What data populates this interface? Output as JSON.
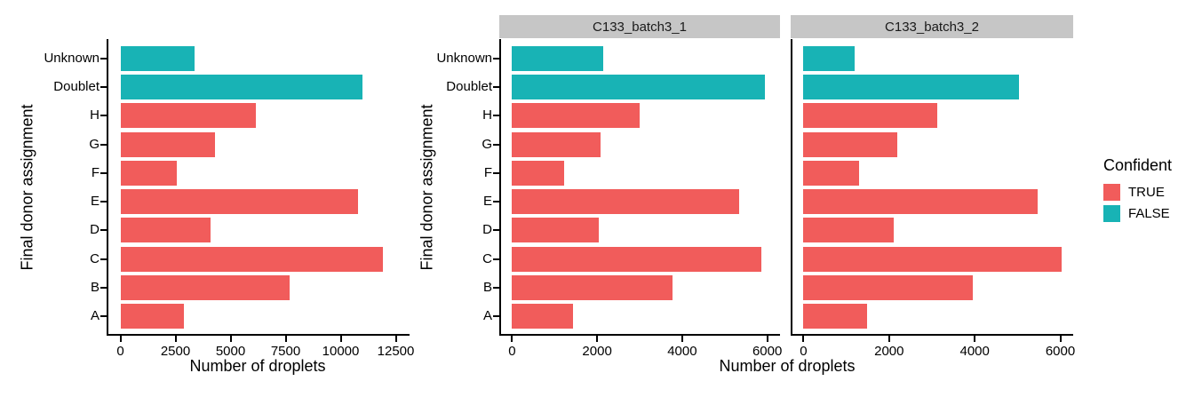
{
  "figure": {
    "legend": {
      "title": "Confident",
      "entries": [
        {
          "label": "TRUE",
          "color": "#F15C5B",
          "confident": true
        },
        {
          "label": "FALSE",
          "color": "#18B3B5",
          "confident": false
        }
      ]
    },
    "colors": {
      "confident_true": "#F15C5B",
      "confident_false": "#18B3B5",
      "strip_bg": "#C6C6C6",
      "axis": "#000000",
      "text": "#000000"
    }
  },
  "chart_data": [
    {
      "type": "bar",
      "orientation": "horizontal",
      "facet_label": null,
      "xlabel": "Number of droplets",
      "ylabel": "Final donor assignment",
      "categories": [
        "Unknown",
        "Doublet",
        "H",
        "G",
        "F",
        "E",
        "D",
        "C",
        "B",
        "A"
      ],
      "values": [
        3350,
        11000,
        6150,
        4300,
        2550,
        10800,
        4100,
        11900,
        7700,
        2900
      ],
      "confident": [
        false,
        false,
        true,
        true,
        true,
        true,
        true,
        true,
        true,
        true
      ],
      "xlim": [
        0,
        12500
      ],
      "xticks": [
        0,
        2500,
        5000,
        7500,
        10000,
        12500
      ],
      "grid": false,
      "legend_position": "right"
    },
    {
      "type": "bar",
      "orientation": "horizontal",
      "facet_label": "C133_batch3_1",
      "xlabel": "Number of droplets",
      "ylabel": "Final donor assignment",
      "categories": [
        "Unknown",
        "Doublet",
        "H",
        "G",
        "F",
        "E",
        "D",
        "C",
        "B",
        "A"
      ],
      "values": [
        2150,
        5950,
        3000,
        2080,
        1230,
        5330,
        2030,
        5860,
        3770,
        1430
      ],
      "confident": [
        false,
        false,
        true,
        true,
        true,
        true,
        true,
        true,
        true,
        true
      ],
      "xlim": [
        0,
        6000
      ],
      "xticks": [
        0,
        2000,
        4000,
        6000
      ],
      "grid": false,
      "legend_position": "right"
    },
    {
      "type": "bar",
      "orientation": "horizontal",
      "facet_label": "C133_batch3_2",
      "xlabel": "Number of droplets",
      "ylabel": "Final donor assignment",
      "categories": [
        "Unknown",
        "Doublet",
        "H",
        "G",
        "F",
        "E",
        "D",
        "C",
        "B",
        "A"
      ],
      "values": [
        1200,
        5030,
        3120,
        2200,
        1300,
        5480,
        2100,
        6040,
        3950,
        1480
      ],
      "confident": [
        false,
        false,
        true,
        true,
        true,
        true,
        true,
        true,
        true,
        true
      ],
      "xlim": [
        0,
        6000
      ],
      "xticks": [
        0,
        2000,
        4000,
        6000
      ],
      "grid": false,
      "legend_position": "right"
    }
  ]
}
